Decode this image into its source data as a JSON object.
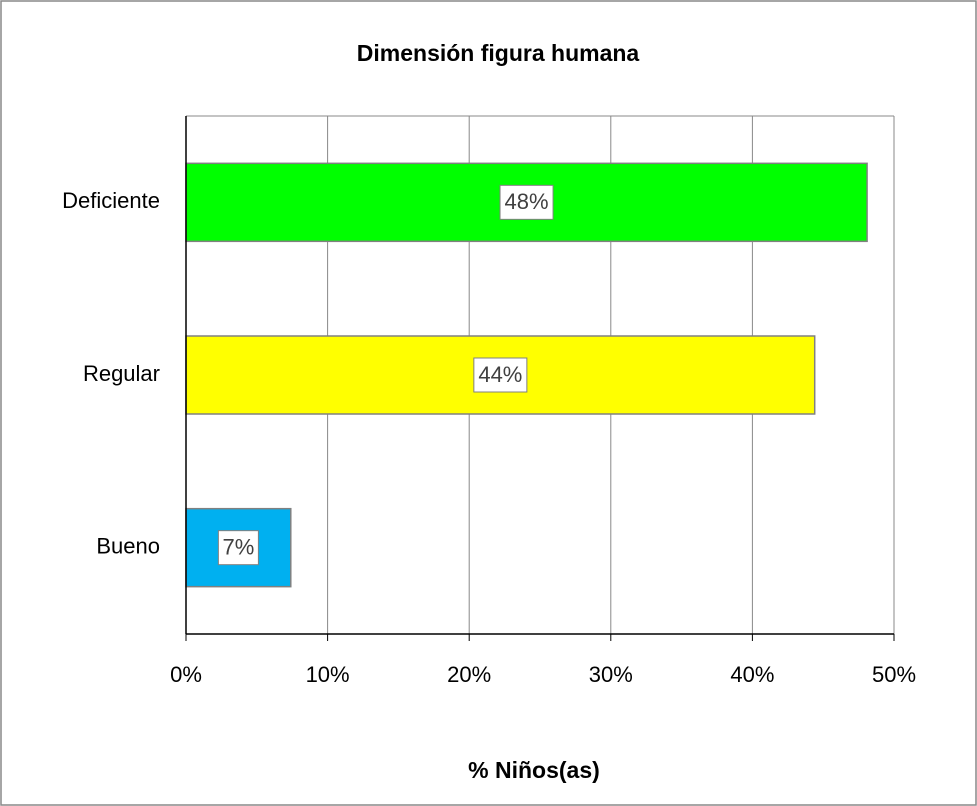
{
  "chart_data": {
    "type": "hbar",
    "title": "Dimensión figura humana",
    "x_label": "% Niños(as)",
    "categories": [
      "Deficiente",
      "Regular",
      "Bueno"
    ],
    "values": [
      48.1,
      44.4,
      7.4
    ],
    "value_labels": [
      "48%",
      "44%",
      "7%"
    ],
    "colors": [
      "#00ff00",
      "#ffff00",
      "#00b0f0"
    ],
    "xlim": [
      0,
      50
    ],
    "xticks": [
      {
        "value": 0,
        "label": "0%"
      },
      {
        "value": 10,
        "label": "10%"
      },
      {
        "value": 20,
        "label": "20%"
      },
      {
        "value": 30,
        "label": "30%"
      },
      {
        "value": 40,
        "label": "40%"
      },
      {
        "value": 50,
        "label": "50%"
      }
    ],
    "grid": true
  }
}
